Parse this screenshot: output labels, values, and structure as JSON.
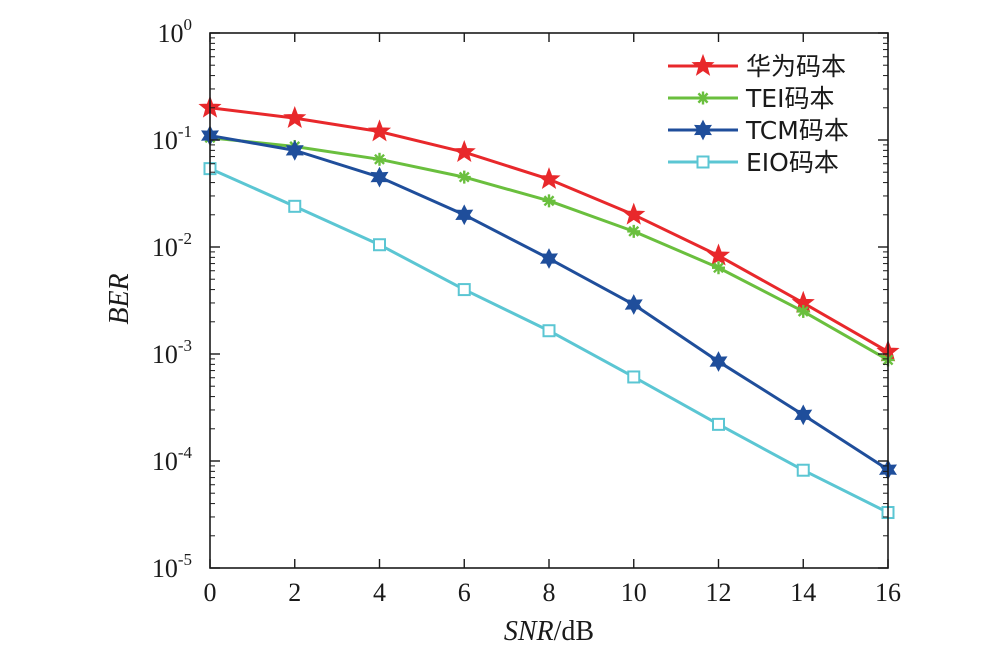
{
  "chart_data": {
    "type": "line",
    "x": [
      0,
      2,
      4,
      6,
      8,
      10,
      12,
      14,
      16
    ],
    "xlabel": "SNR/dB",
    "ylabel": "BER",
    "xlim": [
      0,
      16
    ],
    "ylim": [
      1e-05,
      1
    ],
    "yscale": "log",
    "grid": false,
    "legend_position": "top-right",
    "x_ticks": [
      "0",
      "2",
      "4",
      "6",
      "8",
      "10",
      "12",
      "14",
      "16"
    ],
    "y_ticks": [
      {
        "base": "10",
        "exp": "0"
      },
      {
        "base": "10",
        "exp": "-1"
      },
      {
        "base": "10",
        "exp": "-2"
      },
      {
        "base": "10",
        "exp": "-3"
      },
      {
        "base": "10",
        "exp": "-4"
      },
      {
        "base": "10",
        "exp": "-5"
      }
    ],
    "series": [
      {
        "name": "华为码本",
        "color": "#e8282b",
        "marker": "star",
        "values": [
          0.2,
          0.16,
          0.12,
          0.077,
          0.043,
          0.02,
          0.0083,
          0.003,
          0.00105
        ]
      },
      {
        "name": "TEI码本",
        "color": "#6abf3e",
        "marker": "asterisk",
        "values": [
          0.105,
          0.087,
          0.066,
          0.045,
          0.027,
          0.014,
          0.0064,
          0.0025,
          0.00088
        ]
      },
      {
        "name": "TCM码本",
        "color": "#1f4e9b",
        "marker": "hexagram",
        "values": [
          0.11,
          0.08,
          0.045,
          0.02,
          0.0078,
          0.0029,
          0.00085,
          0.00027,
          8.3e-05
        ]
      },
      {
        "name": "EIO码本",
        "color": "#5bc6d3",
        "marker": "square",
        "values": [
          0.054,
          0.024,
          0.0105,
          0.004,
          0.00165,
          0.00061,
          0.00022,
          8.2e-05,
          3.3e-05
        ]
      }
    ]
  }
}
